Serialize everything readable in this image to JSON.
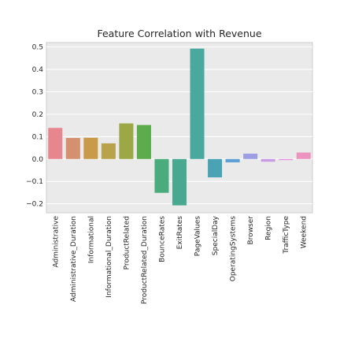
{
  "chart_data": {
    "type": "bar",
    "title": "Feature Correlation with Revenue",
    "xlabel": "",
    "ylabel": "",
    "ylim": [
      -0.24,
      0.52
    ],
    "yticks": [
      -0.2,
      -0.1,
      0.0,
      0.1,
      0.2,
      0.3,
      0.4,
      0.5
    ],
    "ytick_labels": [
      "−0.2",
      "−0.1",
      "0.0",
      "0.1",
      "0.2",
      "0.3",
      "0.4",
      "0.5"
    ],
    "grid": true,
    "categories": [
      "Administrative",
      "Administrative_Duration",
      "Informational",
      "Informational_Duration",
      "ProductRelated",
      "ProductRelated_Duration",
      "BounceRates",
      "ExitRates",
      "PageValues",
      "SpecialDay",
      "OperatingSystems",
      "Browser",
      "Region",
      "TrafficType",
      "Weekend"
    ],
    "values": [
      0.139,
      0.094,
      0.095,
      0.07,
      0.159,
      0.152,
      -0.151,
      -0.207,
      0.493,
      -0.082,
      -0.015,
      0.024,
      -0.012,
      -0.005,
      0.029
    ],
    "colors": [
      "#e8868f",
      "#d59070",
      "#c99a4a",
      "#b9a24c",
      "#9ba845",
      "#5cab4c",
      "#4aab7d",
      "#49a890",
      "#4aa89f",
      "#4aa3b5",
      "#5e9fd6",
      "#9c9de2",
      "#c89be4",
      "#e692df",
      "#ec93bf"
    ]
  }
}
